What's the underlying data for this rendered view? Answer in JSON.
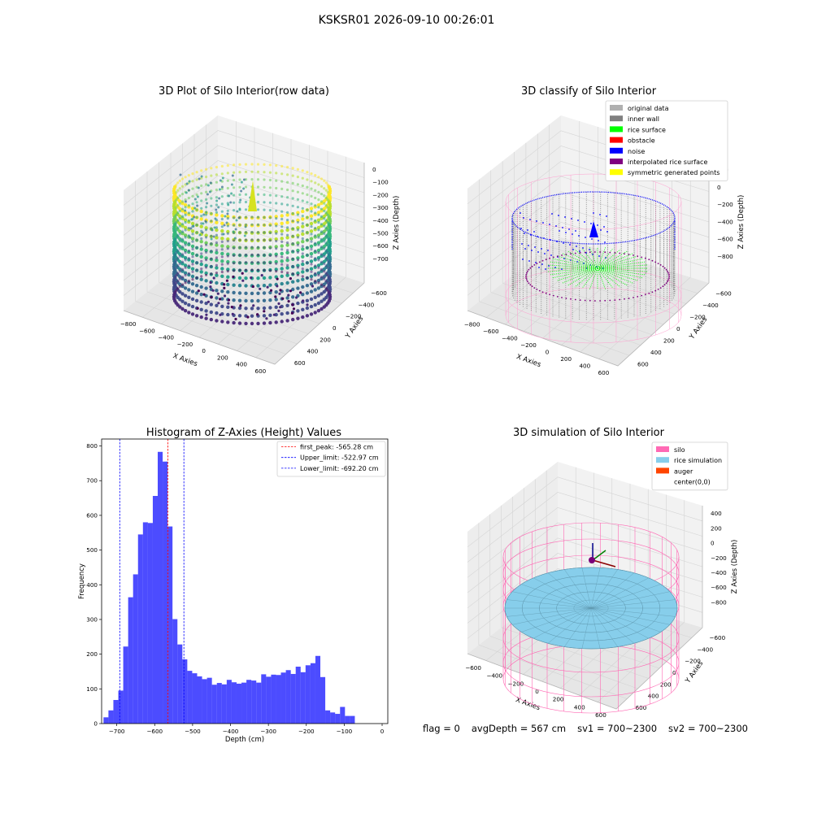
{
  "figure": {
    "suptitle": "KSKSR01 2026-09-10 00:26:01"
  },
  "footer": {
    "flag": "flag = 0",
    "avg_depth": "avgDepth = 567 cm",
    "sv1": "sv1 = 700~2300",
    "sv2": "sv2 = 700~2300"
  },
  "chart_data": [
    {
      "type": "scatter",
      "projection": "3d",
      "title": "3D Plot of Silo Interior(row data)",
      "xlabel": "X Axies",
      "ylabel": "Y Axies",
      "zlabel": "Z Axies (Depth)",
      "x_ticks": [
        "−800",
        "−600",
        "−400",
        "−200",
        "0",
        "200",
        "400",
        "600"
      ],
      "y_ticks": [
        "−600",
        "−400",
        "−200",
        "0",
        "200",
        "400",
        "600"
      ],
      "z_ticks": [
        "0",
        "−100",
        "−200",
        "−300",
        "−400",
        "−500",
        "−600",
        "−700"
      ],
      "colormap": "viridis",
      "grid": true
    },
    {
      "type": "scatter",
      "projection": "3d",
      "title": "3D classify of Silo Interior",
      "xlabel": "X Axies",
      "ylabel": "Y Axies",
      "zlabel": "Z Axies (Depth)",
      "x_ticks": [
        "−800",
        "−600",
        "−400",
        "−200",
        "0",
        "200",
        "400",
        "600"
      ],
      "y_ticks": [
        "−600",
        "−400",
        "−200",
        "0",
        "200",
        "400",
        "600"
      ],
      "z_ticks": [
        "200",
        "0",
        "−200",
        "−400",
        "−600",
        "−800"
      ],
      "legend_position": "top-right",
      "legend": [
        {
          "label": "original data",
          "color": "#b0b0b0"
        },
        {
          "label": "inner wall",
          "color": "#808080"
        },
        {
          "label": "rice surface",
          "color": "#00ff00"
        },
        {
          "label": "obstacle",
          "color": "#ff0000"
        },
        {
          "label": "noise",
          "color": "#0000ff"
        },
        {
          "label": "interpolated rice surface",
          "color": "#800080"
        },
        {
          "label": "symmetric generated points",
          "color": "#ffff00"
        }
      ],
      "grid": true
    },
    {
      "type": "histogram",
      "title": "Histogram of Z-Axies (Height) Values",
      "xlabel": "Depth (cm)",
      "ylabel": "Frequency",
      "xlim": [
        -740,
        15
      ],
      "ylim": [
        0,
        820
      ],
      "x_ticks": [
        -700,
        -600,
        -500,
        -400,
        -300,
        -200,
        -100,
        0
      ],
      "x_tick_labels": [
        "−700",
        "−600",
        "−500",
        "−400",
        "−300",
        "−200",
        "−100",
        "0"
      ],
      "y_ticks": [
        0,
        100,
        200,
        300,
        400,
        500,
        600,
        700,
        800
      ],
      "bar_color": "#0000ff",
      "bins": [
        [
          -735,
          -722,
          18
        ],
        [
          -722,
          -709,
          38
        ],
        [
          -709,
          -696,
          68
        ],
        [
          -696,
          -683,
          95
        ],
        [
          -683,
          -670,
          222
        ],
        [
          -670,
          -657,
          364
        ],
        [
          -657,
          -644,
          430
        ],
        [
          -644,
          -631,
          545
        ],
        [
          -631,
          -618,
          580
        ],
        [
          -618,
          -605,
          578
        ],
        [
          -605,
          -592,
          656
        ],
        [
          -592,
          -579,
          783
        ],
        [
          -579,
          -566,
          755
        ],
        [
          -566,
          -553,
          568
        ],
        [
          -553,
          -540,
          301
        ],
        [
          -540,
          -527,
          228
        ],
        [
          -527,
          -514,
          185
        ],
        [
          -514,
          -501,
          152
        ],
        [
          -501,
          -488,
          145
        ],
        [
          -488,
          -475,
          136
        ],
        [
          -475,
          -462,
          128
        ],
        [
          -462,
          -449,
          132
        ],
        [
          -449,
          -436,
          112
        ],
        [
          -436,
          -423,
          117
        ],
        [
          -423,
          -410,
          113
        ],
        [
          -410,
          -397,
          126
        ],
        [
          -397,
          -384,
          119
        ],
        [
          -384,
          -371,
          115
        ],
        [
          -371,
          -358,
          118
        ],
        [
          -358,
          -345,
          126
        ],
        [
          -345,
          -332,
          124
        ],
        [
          -332,
          -319,
          118
        ],
        [
          -319,
          -306,
          142
        ],
        [
          -306,
          -293,
          135
        ],
        [
          -293,
          -280,
          141
        ],
        [
          -280,
          -267,
          140
        ],
        [
          -267,
          -254,
          147
        ],
        [
          -254,
          -241,
          154
        ],
        [
          -241,
          -228,
          143
        ],
        [
          -228,
          -215,
          164
        ],
        [
          -215,
          -202,
          148
        ],
        [
          -202,
          -189,
          168
        ],
        [
          -189,
          -176,
          174
        ],
        [
          -176,
          -163,
          195
        ],
        [
          -163,
          -150,
          134
        ],
        [
          -150,
          -137,
          38
        ],
        [
          -137,
          -124,
          32
        ],
        [
          -124,
          -111,
          28
        ],
        [
          -111,
          -98,
          48
        ],
        [
          -98,
          -85,
          22
        ],
        [
          -85,
          -72,
          22
        ]
      ],
      "vlines": [
        {
          "x": -565.28,
          "color": "#ff0000",
          "label": "first_peak: -565.28 cm"
        },
        {
          "x": -522.97,
          "color": "#0000ff",
          "label": "Upper_limit: -522.97 cm"
        },
        {
          "x": -692.2,
          "color": "#0000ff",
          "label": "Lower_limit: -692.20 cm"
        }
      ],
      "legend_position": "top-right"
    },
    {
      "type": "surface",
      "projection": "3d",
      "title": "3D simulation of Silo Interior",
      "xlabel": "X Axies",
      "ylabel": "Y Axies",
      "zlabel": "Z Axies (Depth)",
      "x_ticks": [
        "−600",
        "−400",
        "−200",
        "0",
        "200",
        "400",
        "600"
      ],
      "y_ticks": [
        "−600",
        "−400",
        "−200",
        "0",
        "200",
        "400",
        "600"
      ],
      "z_ticks": [
        "400",
        "200",
        "0",
        "−200",
        "−400",
        "−600",
        "−800"
      ],
      "legend_position": "top-right",
      "legend": [
        {
          "label": "silo",
          "color": "#ff69b4"
        },
        {
          "label": "rice simulation",
          "color": "#87ceeb"
        },
        {
          "label": "auger",
          "color": "#ff4500"
        },
        {
          "label": "center(0,0)",
          "color": ""
        }
      ],
      "grid": true
    }
  ]
}
